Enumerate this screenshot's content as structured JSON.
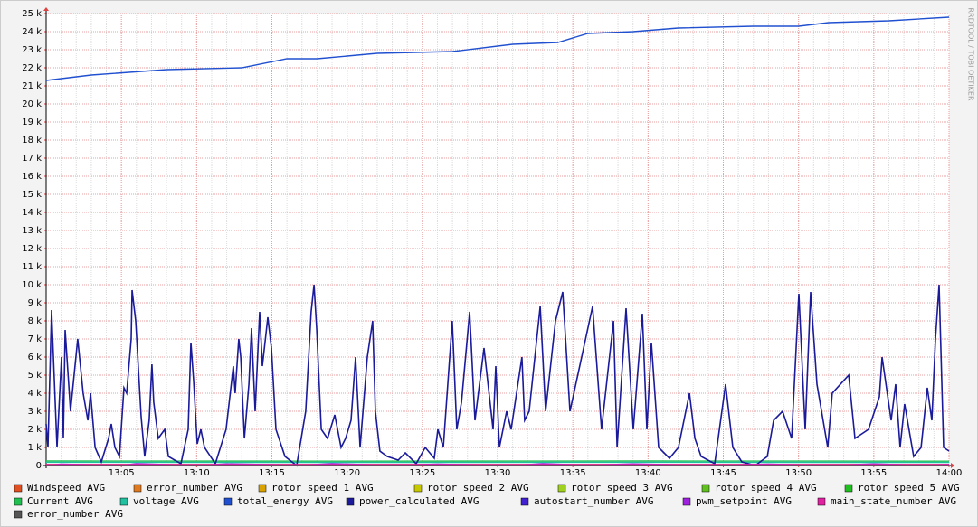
{
  "chart_data": {
    "type": "line",
    "watermark": "RRDTOOL / TOBI OETIKER",
    "grid": true,
    "xlim": [
      780,
      840
    ],
    "xticks": [
      {
        "value": 785,
        "label": "13:05"
      },
      {
        "value": 790,
        "label": "13:10"
      },
      {
        "value": 795,
        "label": "13:15"
      },
      {
        "value": 800,
        "label": "13:20"
      },
      {
        "value": 805,
        "label": "13:25"
      },
      {
        "value": 810,
        "label": "13:30"
      },
      {
        "value": 815,
        "label": "13:35"
      },
      {
        "value": 820,
        "label": "13:40"
      },
      {
        "value": 825,
        "label": "13:45"
      },
      {
        "value": 830,
        "label": "13:50"
      },
      {
        "value": 835,
        "label": "13:55"
      },
      {
        "value": 840,
        "label": "14:00"
      }
    ],
    "ylim": [
      0,
      25000
    ],
    "yticks": [
      0,
      {
        "value": 1000,
        "label": "1 k"
      },
      {
        "value": 2000,
        "label": "2 k"
      },
      {
        "value": 3000,
        "label": "3 k"
      },
      {
        "value": 4000,
        "label": "4 k"
      },
      {
        "value": 5000,
        "label": "5 k"
      },
      {
        "value": 6000,
        "label": "6 k"
      },
      {
        "value": 7000,
        "label": "7 k"
      },
      {
        "value": 8000,
        "label": "8 k"
      },
      {
        "value": 9000,
        "label": "9 k"
      },
      {
        "value": 10000,
        "label": "10 k"
      },
      {
        "value": 11000,
        "label": "11 k"
      },
      {
        "value": 12000,
        "label": "12 k"
      },
      {
        "value": 13000,
        "label": "13 k"
      },
      {
        "value": 14000,
        "label": "14 k"
      },
      {
        "value": 15000,
        "label": "15 k"
      },
      {
        "value": 16000,
        "label": "16 k"
      },
      {
        "value": 17000,
        "label": "17 k"
      },
      {
        "value": 18000,
        "label": "18 k"
      },
      {
        "value": 19000,
        "label": "19 k"
      },
      {
        "value": 20000,
        "label": "20 k"
      },
      {
        "value": 21000,
        "label": "21 k"
      },
      {
        "value": 22000,
        "label": "22 k"
      },
      {
        "value": 23000,
        "label": "23 k"
      },
      {
        "value": 24000,
        "label": "24 k"
      },
      {
        "value": 25000,
        "label": "25 k"
      }
    ],
    "series": [
      {
        "name": "Windspeed AVG",
        "color": "#e05020",
        "x": [
          780,
          800,
          820,
          840
        ],
        "values": [
          60,
          60,
          60,
          60
        ]
      },
      {
        "name": "error_number AVG",
        "color": "#e07a20",
        "x": [
          780,
          800,
          820,
          840
        ],
        "values": [
          0,
          0,
          0,
          0
        ]
      },
      {
        "name": "rotor speed 1 AVG",
        "color": "#d9a200",
        "x": [
          780,
          800,
          820,
          840
        ],
        "values": [
          20,
          20,
          20,
          20
        ]
      },
      {
        "name": "rotor speed 2 AVG",
        "color": "#c8c800",
        "x": [
          780,
          800,
          820,
          840
        ],
        "values": [
          20,
          20,
          20,
          20
        ]
      },
      {
        "name": "rotor speed 3 AVG",
        "color": "#a0d020",
        "x": [
          780,
          800,
          820,
          840
        ],
        "values": [
          20,
          20,
          20,
          20
        ]
      },
      {
        "name": "rotor speed 4 AVG",
        "color": "#60c020",
        "x": [
          780,
          800,
          820,
          840
        ],
        "values": [
          20,
          20,
          20,
          20
        ]
      },
      {
        "name": "rotor speed 5 AVG",
        "color": "#20c020",
        "x": [
          780,
          800,
          820,
          840
        ],
        "values": [
          20,
          20,
          20,
          20
        ]
      },
      {
        "name": "Current AVG",
        "color": "#20c050",
        "x": [
          780,
          800,
          820,
          840
        ],
        "values": [
          250,
          240,
          250,
          240
        ]
      },
      {
        "name": "voltage AVG",
        "color": "#20c0a0",
        "x": [
          780,
          800,
          820,
          840
        ],
        "values": [
          180,
          170,
          180,
          170
        ]
      },
      {
        "name": "total_energy AVG",
        "color": "#2050d0",
        "x": [
          780,
          783,
          788,
          793,
          796,
          798,
          802,
          807,
          811,
          814,
          816,
          819,
          822,
          827,
          830,
          832,
          836,
          840
        ],
        "values": [
          21300,
          21600,
          21900,
          22000,
          22500,
          22500,
          22800,
          22900,
          23300,
          23400,
          23900,
          24000,
          24200,
          24300,
          24300,
          24500,
          24600,
          24800
        ]
      },
      {
        "name": "power_calculated AVG",
        "color": "#1a1a9a",
        "x": [
          780,
          780.12,
          780.36,
          780.72,
          781.02,
          781.14,
          781.26,
          781.62,
          782.1,
          782.46,
          782.77,
          782.95,
          783.25,
          783.67,
          784.15,
          784.33,
          784.57,
          784.87,
          785.17,
          785.35,
          785.65,
          785.71,
          785.95,
          786.31,
          786.55,
          786.85,
          787.03,
          787.15,
          787.45,
          787.88,
          788.12,
          788.96,
          789.44,
          789.62,
          789.8,
          790.04,
          790.28,
          790.52,
          791.24,
          791.96,
          792.44,
          792.56,
          792.8,
          792.93,
          793.17,
          793.47,
          793.65,
          793.89,
          794.19,
          794.37,
          794.73,
          794.97,
          795.27,
          795.87,
          796.65,
          797.25,
          797.61,
          797.8,
          797.98,
          798.28,
          798.7,
          799.18,
          799.6,
          799.9,
          800.26,
          800.56,
          800.86,
          801.34,
          801.7,
          801.88,
          802.18,
          802.67,
          803.39,
          803.87,
          804.59,
          805.19,
          805.79,
          806.03,
          806.39,
          806.99,
          807.29,
          807.6,
          808.14,
          808.5,
          809.1,
          809.7,
          809.88,
          810.12,
          810.6,
          810.9,
          811.62,
          811.8,
          812.1,
          812.83,
          813.19,
          813.85,
          814.33,
          814.81,
          816.31,
          816.91,
          817.7,
          817.94,
          818.54,
          819.02,
          819.62,
          819.92,
          820.22,
          820.7,
          821.42,
          822.02,
          822.75,
          823.11,
          823.53,
          824.43,
          825.15,
          825.63,
          826.23,
          827.13,
          827.92,
          828.34,
          828.94,
          829.54,
          830.02,
          830.44,
          830.8,
          831.22,
          831.94,
          832.24,
          833.33,
          833.75,
          834.65,
          835.37,
          835.55,
          836.15,
          836.45,
          836.75,
          837.05,
          837.65,
          838.14,
          838.56,
          838.86,
          839.1,
          839.34,
          839.64,
          840
        ],
        "values": [
          2300,
          1000,
          8600,
          1000,
          6000,
          1500,
          7500,
          3000,
          7000,
          4000,
          2500,
          4000,
          1000,
          200,
          1500,
          2300,
          1000,
          500,
          4300,
          4000,
          7000,
          9700,
          8000,
          2700,
          500,
          2500,
          5600,
          3500,
          1500,
          2000,
          500,
          100,
          2000,
          6800,
          4700,
          1200,
          2000,
          1000,
          100,
          2000,
          5500,
          4000,
          7000,
          6000,
          1500,
          4500,
          7600,
          3000,
          8500,
          5500,
          8200,
          6500,
          2000,
          500,
          0,
          3000,
          8500,
          10000,
          7500,
          2000,
          1500,
          2800,
          1000,
          1500,
          2500,
          6000,
          1000,
          6000,
          8000,
          3000,
          800,
          500,
          300,
          700,
          100,
          1000,
          400,
          2000,
          1000,
          8000,
          2000,
          3500,
          8500,
          2500,
          6500,
          2000,
          5500,
          1000,
          3000,
          2000,
          6000,
          2500,
          3000,
          8800,
          3000,
          8000,
          9600,
          3000,
          8800,
          2000,
          8000,
          1000,
          8700,
          2000,
          8400,
          2000,
          6800,
          1000,
          400,
          1000,
          4000,
          1500,
          500,
          100,
          4500,
          1000,
          200,
          0,
          500,
          2500,
          3000,
          1500,
          9500,
          2000,
          9600,
          4500,
          1000,
          4000,
          5000,
          1500,
          2000,
          3800,
          6000,
          2500,
          4500,
          1000,
          3400,
          500,
          1000,
          4300,
          2500,
          7000,
          10000,
          1000,
          800
        ]
      },
      {
        "name": "autostart_number AVG",
        "color": "#4020d0",
        "x": [
          780,
          800,
          820,
          840
        ],
        "values": [
          0,
          0,
          0,
          0
        ]
      },
      {
        "name": "pwm_setpoint AVG",
        "color": "#a020e0",
        "x": [
          780,
          781,
          785,
          786,
          790,
          792,
          797,
          799,
          803,
          806,
          811,
          813,
          816,
          819,
          824,
          828,
          832,
          835,
          838,
          840
        ],
        "values": [
          0,
          80,
          10,
          100,
          0,
          90,
          20,
          100,
          10,
          80,
          0,
          100,
          20,
          90,
          10,
          80,
          0,
          90,
          20,
          60
        ]
      },
      {
        "name": "main_state_number AVG",
        "color": "#e020a0",
        "x": [
          780,
          800,
          820,
          840
        ],
        "values": [
          50,
          50,
          50,
          50
        ]
      },
      {
        "name": "error_number AVG",
        "color": "#555555",
        "x": [
          780,
          800,
          820,
          840
        ],
        "values": [
          0,
          0,
          0,
          0
        ]
      }
    ]
  }
}
